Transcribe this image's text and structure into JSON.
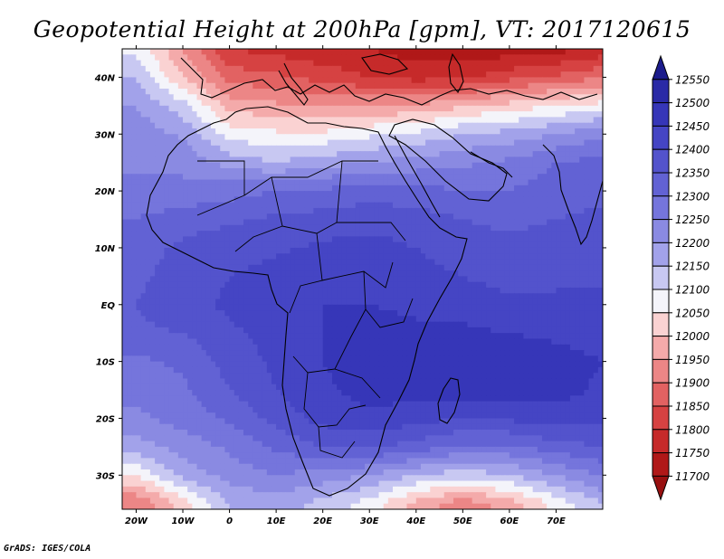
{
  "title": "Geopotential Height at 200hPa [gpm], VT: 2017120615",
  "credit": "GrADS: IGES/COLA",
  "map": {
    "lon_range": [
      -23,
      80
    ],
    "lat_range": [
      -36,
      45
    ],
    "lon_ticks": [
      "20W",
      "10W",
      "0",
      "10E",
      "20E",
      "30E",
      "40E",
      "50E",
      "60E",
      "70E"
    ],
    "lon_tick_values": [
      -20,
      -10,
      0,
      10,
      20,
      30,
      40,
      50,
      60,
      70
    ],
    "lat_ticks": [
      "40N",
      "30N",
      "20N",
      "10N",
      "EQ",
      "10S",
      "20S",
      "30S"
    ],
    "lat_tick_values": [
      40,
      30,
      20,
      10,
      0,
      -10,
      -20,
      -30
    ],
    "coastline_color": "#000000"
  },
  "colorbar": {
    "levels": [
      "12550",
      "12500",
      "12450",
      "12400",
      "12350",
      "12300",
      "12250",
      "12200",
      "12150",
      "12100",
      "12050",
      "12000",
      "11950",
      "11900",
      "11850",
      "11800",
      "11750",
      "11700"
    ],
    "colors": [
      "#1c1c8c",
      "#2a2aa6",
      "#3636b8",
      "#4545c4",
      "#5353cc",
      "#6262d4",
      "#7575dc",
      "#8a8ae2",
      "#a2a2ea",
      "#c8c8f2",
      "#f4f4fa",
      "#fad2d2",
      "#f4aaaa",
      "#ec8686",
      "#e26262",
      "#d64242",
      "#c62a2a",
      "#b01818",
      "#981010"
    ]
  },
  "chart_data": {
    "type": "heatmap",
    "title": "Geopotential Height at 200hPa [gpm], VT: 2017120615",
    "variable": "Geopotential Height at 200hPa",
    "units": "gpm",
    "valid_time": "2017120615",
    "contour_levels": [
      11700,
      11750,
      11800,
      11850,
      11900,
      11950,
      12000,
      12050,
      12100,
      12150,
      12200,
      12250,
      12300,
      12350,
      12400,
      12450,
      12500,
      12550
    ],
    "x_axis": {
      "label": "",
      "range": [
        -23,
        80
      ]
    },
    "y_axis": {
      "label": "",
      "range": [
        -36,
        45
      ]
    },
    "field": {
      "lons": [
        -20,
        -10,
        0,
        10,
        20,
        30,
        40,
        50,
        60,
        70,
        80
      ],
      "lats": [
        45,
        40,
        35,
        30,
        25,
        20,
        15,
        10,
        5,
        0,
        -5,
        -10,
        -15,
        -20,
        -25,
        -30,
        -35
      ],
      "values": [
        [
          12080,
          11950,
          11800,
          11780,
          11760,
          11750,
          11720,
          11710,
          11720,
          11730,
          11760
        ],
        [
          12150,
          12000,
          11880,
          11860,
          11830,
          11800,
          11780,
          11790,
          11830,
          11860,
          11900
        ],
        [
          12200,
          12120,
          11980,
          11960,
          11940,
          11950,
          11960,
          11990,
          12020,
          12050,
          12070
        ],
        [
          12230,
          12190,
          12080,
          12060,
          12060,
          12090,
          12110,
          12150,
          12170,
          12200,
          12240
        ],
        [
          12240,
          12240,
          12180,
          12150,
          12180,
          12200,
          12220,
          12240,
          12260,
          12300,
          12320
        ],
        [
          12260,
          12260,
          12280,
          12300,
          12310,
          12330,
          12320,
          12300,
          12300,
          12330,
          12340
        ],
        [
          12300,
          12330,
          12340,
          12360,
          12370,
          12380,
          12370,
          12350,
          12340,
          12350,
          12360
        ],
        [
          12330,
          12360,
          12380,
          12390,
          12410,
          12420,
          12400,
          12370,
          12360,
          12370,
          12380
        ],
        [
          12340,
          12370,
          12400,
          12420,
          12440,
          12440,
          12420,
          12400,
          12380,
          12390,
          12400
        ],
        [
          12350,
          12380,
          12410,
          12430,
          12450,
          12450,
          12440,
          12430,
          12410,
          12410,
          12400
        ],
        [
          12340,
          12350,
          12390,
          12420,
          12450,
          12470,
          12460,
          12460,
          12450,
          12440,
          12430
        ],
        [
          12290,
          12310,
          12370,
          12410,
          12450,
          12480,
          12480,
          12490,
          12480,
          12470,
          12450
        ],
        [
          12260,
          12290,
          12350,
          12400,
          12440,
          12470,
          12470,
          12480,
          12480,
          12470,
          12440
        ],
        [
          12240,
          12270,
          12310,
          12370,
          12420,
          12440,
          12420,
          12400,
          12410,
          12430,
          12420
        ],
        [
          12180,
          12220,
          12260,
          12310,
          12350,
          12360,
          12330,
          12290,
          12290,
          12330,
          12350
        ],
        [
          12050,
          12170,
          12220,
          12250,
          12230,
          12200,
          12150,
          12120,
          12150,
          12200,
          12260
        ],
        [
          11900,
          12020,
          12150,
          12180,
          12130,
          12080,
          11980,
          11920,
          11970,
          12070,
          12150
        ]
      ]
    }
  }
}
